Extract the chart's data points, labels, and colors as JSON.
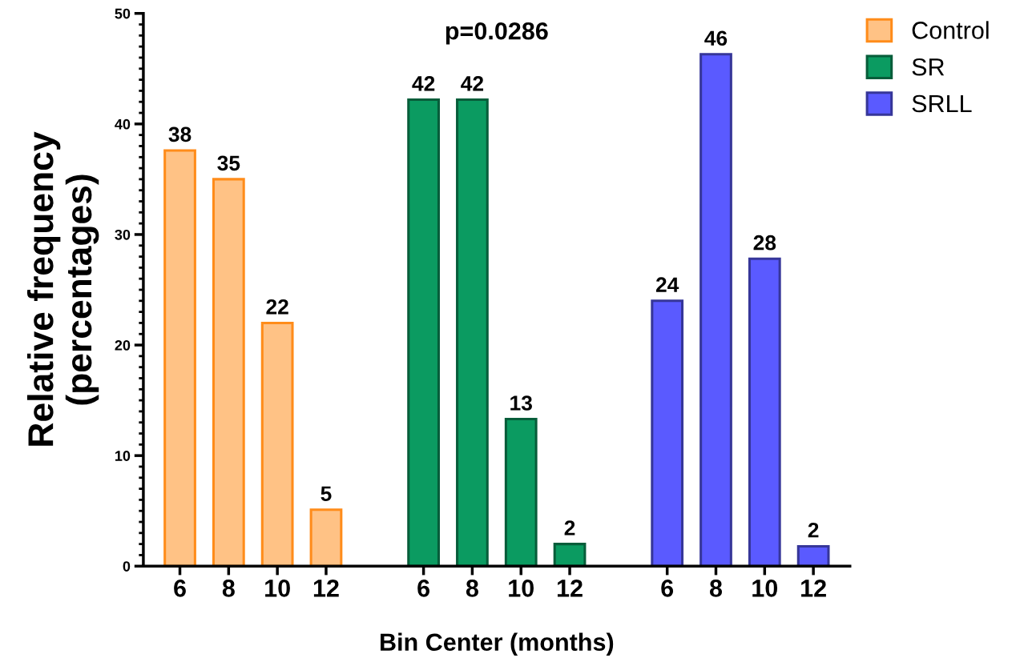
{
  "chart_data": {
    "type": "bar",
    "xlabel": "Bin Center (months)",
    "ylabel": "Relative frequency\n(percentages)",
    "categories": [
      "6",
      "8",
      "10",
      "12",
      null,
      "6",
      "8",
      "10",
      "12",
      null,
      "6",
      "8",
      "10",
      "12"
    ],
    "series": [
      {
        "name": "Control",
        "color": "#ffc285",
        "values": [
          37.6,
          35.0,
          22.0,
          5.1,
          null,
          null,
          null,
          null,
          null,
          null,
          null,
          null,
          null,
          null
        ],
        "value_labels": [
          "38",
          "35",
          "22",
          "5",
          null,
          null,
          null,
          null,
          null,
          null,
          null,
          null,
          null,
          null
        ]
      },
      {
        "name": "SR",
        "color": "#0b9b61",
        "values": [
          null,
          null,
          null,
          null,
          null,
          42.2,
          42.2,
          13.3,
          2.0,
          null,
          null,
          null,
          null,
          null
        ],
        "value_labels": [
          null,
          null,
          null,
          null,
          null,
          "42",
          "42",
          "13",
          "2",
          null,
          null,
          null,
          null,
          null
        ]
      },
      {
        "name": "SRLL",
        "color": "#5a5aff",
        "values": [
          null,
          null,
          null,
          null,
          null,
          null,
          null,
          null,
          null,
          null,
          24.0,
          46.3,
          27.8,
          1.8
        ],
        "value_labels": [
          null,
          null,
          null,
          null,
          null,
          null,
          null,
          null,
          null,
          null,
          "24",
          "46",
          "28",
          "2"
        ]
      }
    ],
    "ylim": [
      0,
      50
    ],
    "yticks": [
      0,
      10,
      20,
      30,
      40,
      50
    ],
    "annotations": [
      "p=0.0286"
    ],
    "legend": "top right",
    "grid": false
  }
}
